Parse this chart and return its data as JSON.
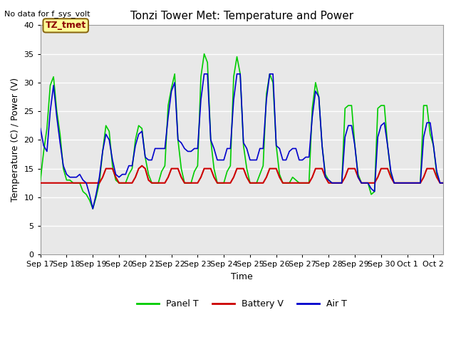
{
  "title": "Tonzi Tower Met: Temperature and Power",
  "top_left_text": "No data for f_sys_volt",
  "annotation_text": "TZ_tmet",
  "xlabel": "Time",
  "ylabel": "Temperature (C) / Power (V)",
  "ylim": [
    0,
    40
  ],
  "yticks": [
    0,
    5,
    10,
    15,
    20,
    25,
    30,
    35,
    40
  ],
  "xtick_labels": [
    "Sep 17",
    "Sep 18",
    "Sep 19",
    "Sep 20",
    "Sep 21",
    "Sep 22",
    "Sep 23",
    "Sep 24",
    "Sep 25",
    "Sep 26",
    "Sep 27",
    "Sep 28",
    "Sep 29",
    "Sep 30",
    "Oct 1",
    "Oct 2"
  ],
  "background_color": "#e8e8e8",
  "panel_color": "#00cc00",
  "battery_color": "#cc0000",
  "air_color": "#0000cc",
  "legend_labels": [
    "Panel T",
    "Battery V",
    "Air T"
  ],
  "panel_t": [
    13.0,
    18.0,
    22.0,
    29.5,
    31.0,
    25.0,
    21.0,
    15.0,
    13.0,
    13.0,
    12.5,
    12.5,
    12.5,
    11.0,
    10.5,
    9.5,
    8.0,
    10.0,
    12.5,
    18.0,
    22.5,
    21.5,
    15.5,
    13.0,
    12.5,
    12.5,
    12.5,
    14.0,
    15.0,
    20.0,
    22.5,
    22.0,
    17.0,
    14.0,
    12.5,
    12.5,
    12.5,
    14.5,
    15.5,
    26.0,
    29.0,
    31.5,
    20.0,
    15.0,
    12.5,
    12.5,
    12.5,
    14.5,
    15.5,
    31.0,
    35.0,
    33.5,
    20.0,
    15.0,
    12.5,
    12.5,
    12.5,
    14.5,
    15.5,
    31.0,
    34.5,
    31.5,
    19.0,
    15.0,
    12.5,
    12.5,
    12.5,
    14.0,
    15.5,
    28.0,
    31.5,
    30.0,
    19.0,
    14.0,
    12.5,
    12.5,
    12.5,
    13.5,
    13.0,
    12.5,
    12.5,
    12.5,
    12.5,
    25.5,
    30.0,
    27.5,
    19.0,
    14.0,
    13.0,
    12.5,
    12.5,
    12.5,
    12.5,
    25.5,
    26.0,
    26.0,
    19.0,
    14.0,
    12.5,
    12.5,
    12.5,
    10.5,
    11.0,
    25.5,
    26.0,
    26.0,
    19.0,
    14.0,
    12.5,
    12.5,
    12.5,
    12.5,
    12.5,
    12.5,
    12.5,
    12.5,
    12.5,
    26.0,
    26.0,
    21.0,
    19.0,
    14.0,
    12.5,
    12.5
  ],
  "battery_v": [
    12.5,
    12.5,
    12.5,
    12.5,
    12.5,
    12.5,
    12.5,
    12.5,
    12.5,
    12.5,
    12.5,
    12.5,
    12.5,
    12.5,
    12.5,
    12.5,
    12.5,
    12.5,
    12.5,
    13.5,
    15.0,
    15.0,
    15.0,
    13.5,
    12.5,
    12.5,
    12.5,
    12.5,
    12.5,
    13.5,
    15.0,
    15.5,
    15.0,
    13.0,
    12.5,
    12.5,
    12.5,
    12.5,
    12.5,
    13.5,
    15.0,
    15.0,
    15.0,
    13.5,
    12.5,
    12.5,
    12.5,
    12.5,
    12.5,
    13.5,
    15.0,
    15.0,
    15.0,
    13.5,
    12.5,
    12.5,
    12.5,
    12.5,
    12.5,
    13.5,
    15.0,
    15.0,
    15.0,
    13.5,
    12.5,
    12.5,
    12.5,
    12.5,
    12.5,
    13.5,
    15.0,
    15.0,
    15.0,
    13.5,
    12.5,
    12.5,
    12.5,
    12.5,
    12.5,
    12.5,
    12.5,
    12.5,
    12.5,
    13.5,
    15.0,
    15.0,
    15.0,
    13.5,
    12.5,
    12.5,
    12.5,
    12.5,
    12.5,
    13.5,
    15.0,
    15.0,
    15.0,
    13.5,
    12.5,
    12.5,
    12.5,
    12.5,
    12.5,
    13.5,
    15.0,
    15.0,
    15.0,
    13.5,
    12.5,
    12.5,
    12.5,
    12.5,
    12.5,
    12.5,
    12.5,
    12.5,
    12.5,
    13.5,
    15.0,
    15.0,
    15.0,
    13.5,
    12.5,
    12.5
  ],
  "air_t": [
    22.0,
    19.0,
    18.0,
    25.0,
    29.5,
    24.0,
    19.5,
    15.5,
    14.0,
    13.5,
    13.5,
    13.5,
    14.0,
    13.0,
    12.5,
    10.5,
    8.0,
    10.5,
    13.5,
    18.0,
    21.0,
    20.0,
    16.5,
    14.0,
    13.5,
    14.0,
    14.0,
    15.5,
    15.5,
    19.0,
    21.0,
    21.5,
    17.0,
    16.5,
    16.5,
    18.5,
    18.5,
    18.5,
    18.5,
    24.0,
    28.5,
    30.0,
    20.0,
    19.5,
    18.5,
    18.0,
    18.0,
    18.5,
    18.5,
    27.0,
    31.5,
    31.5,
    20.0,
    18.5,
    16.5,
    16.5,
    16.5,
    18.5,
    18.5,
    27.0,
    31.5,
    31.5,
    19.5,
    18.5,
    16.5,
    16.5,
    16.5,
    18.5,
    18.5,
    27.0,
    31.5,
    31.5,
    19.0,
    18.5,
    16.5,
    16.5,
    18.0,
    18.5,
    18.5,
    16.5,
    16.5,
    17.0,
    17.0,
    24.0,
    28.5,
    27.5,
    19.0,
    13.5,
    13.0,
    12.5,
    12.5,
    12.5,
    12.5,
    20.5,
    22.5,
    22.5,
    19.0,
    13.5,
    12.5,
    12.5,
    12.5,
    11.5,
    11.0,
    20.5,
    22.5,
    23.0,
    19.0,
    14.5,
    12.5,
    12.5,
    12.5,
    12.5,
    12.5,
    12.5,
    12.5,
    12.5,
    12.5,
    20.5,
    23.0,
    23.0,
    19.0,
    14.5,
    12.5,
    12.5
  ],
  "n_days": 16,
  "samples_per_day": 8
}
